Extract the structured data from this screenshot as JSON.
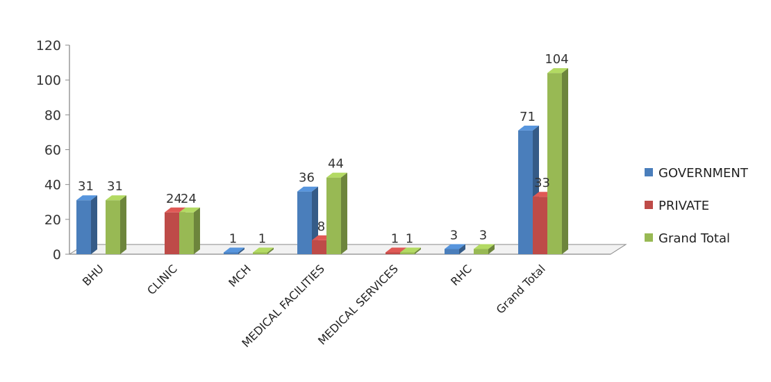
{
  "chart_data": {
    "type": "bar",
    "categories": [
      "BHU",
      "CLINIC",
      "MCH",
      "MEDICAL FACILITIES",
      "MEDICAL SERVICES",
      "RHC",
      "Grand Total"
    ],
    "series": [
      {
        "name": "GOVERNMENT",
        "color": "#4a7ebb",
        "values": [
          31,
          0,
          1,
          36,
          0,
          3,
          71
        ],
        "labels": [
          "31",
          "",
          "1",
          "36",
          "",
          "3",
          "71"
        ]
      },
      {
        "name": "PRIVATE",
        "color": "#be4b48",
        "values": [
          0,
          24,
          0,
          8,
          1,
          0,
          33
        ],
        "labels": [
          "",
          "24",
          "",
          "8",
          "1",
          "",
          "33"
        ]
      },
      {
        "name": "Grand Total",
        "color": "#98b954",
        "values": [
          31,
          24,
          1,
          44,
          1,
          3,
          104
        ],
        "labels": [
          "31",
          "24",
          "1",
          "44",
          "1",
          "3",
          "104"
        ]
      }
    ],
    "yticks": [
      "0",
      "20",
      "40",
      "60",
      "80",
      "100",
      "120"
    ],
    "ylim": [
      0,
      120
    ],
    "grid": false,
    "legend_position": "right",
    "bar_style": "3d"
  }
}
